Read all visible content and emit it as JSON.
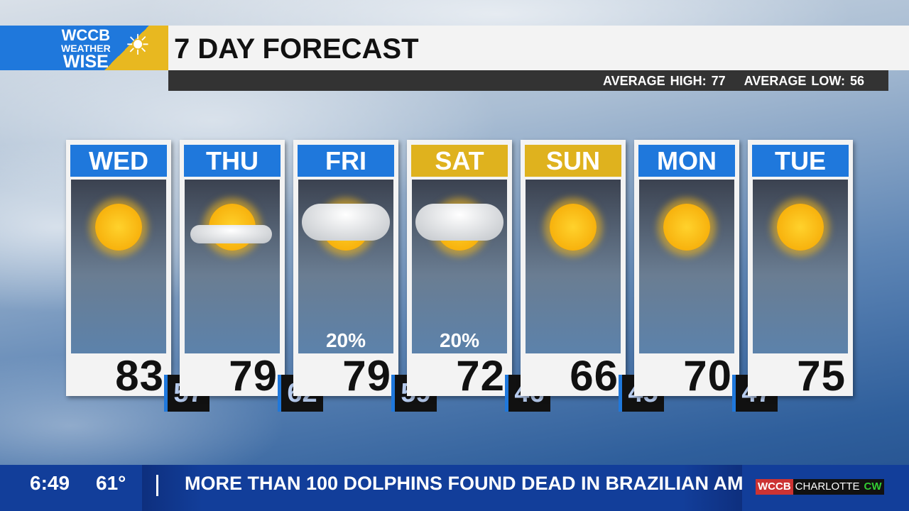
{
  "logo": {
    "line1": "WCCB",
    "line2": "WEATHER",
    "line3": "WISE"
  },
  "title": "7 DAY FORECAST",
  "averages": {
    "high": "AVERAGE HIGH: 77",
    "low": "AVERAGE LOW: 56"
  },
  "days": [
    {
      "day": "WED",
      "high": "83",
      "low": "57",
      "icon": "sunny",
      "pop": "",
      "weekend": false
    },
    {
      "day": "THU",
      "high": "79",
      "low": "62",
      "icon": "mostly-sunny",
      "pop": "",
      "weekend": false
    },
    {
      "day": "FRI",
      "high": "79",
      "low": "59",
      "icon": "partly-cloudy",
      "pop": "20%",
      "weekend": false
    },
    {
      "day": "SAT",
      "high": "72",
      "low": "46",
      "icon": "partly-cloudy",
      "pop": "20%",
      "weekend": true
    },
    {
      "day": "SUN",
      "high": "66",
      "low": "45",
      "icon": "sunny",
      "pop": "",
      "weekend": true
    },
    {
      "day": "MON",
      "high": "70",
      "low": "47",
      "icon": "sunny",
      "pop": "",
      "weekend": false
    },
    {
      "day": "TUE",
      "high": "75",
      "low": "",
      "icon": "sunny",
      "pop": "",
      "weekend": false
    }
  ],
  "colors": {
    "weekday_header": "#1f78dc",
    "weekend_header": "#dfb21e",
    "ticker": "#123e9a"
  },
  "ticker": {
    "time": "6:49",
    "temp": "61°",
    "headline": "MORE THAN 100 DOLPHINS FOUND DEAD IN BRAZILIAN AM"
  },
  "network": {
    "a": "WCCB",
    "b": "CHARLOTTE",
    "c": "CW"
  }
}
